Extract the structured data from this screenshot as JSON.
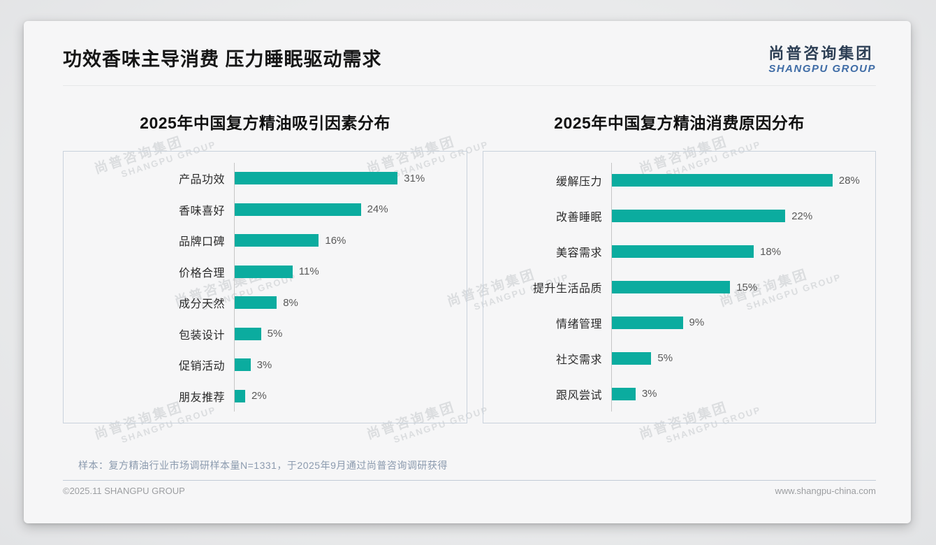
{
  "header": {
    "title": "功效香味主导消费 压力睡眠驱动需求"
  },
  "logo": {
    "cn": "尚普咨询集团",
    "en": "SHANGPU GROUP",
    "cn_color": "#2c3e54",
    "en_color": "#3f6ca6"
  },
  "watermark": {
    "line1": "尚普咨询集团",
    "line2": "SHANGPU GROUP"
  },
  "chart_data": [
    {
      "type": "bar",
      "orientation": "horizontal",
      "title": "2025年中国复方精油吸引因素分布",
      "categories": [
        "产品功效",
        "香味喜好",
        "品牌口碑",
        "价格合理",
        "成分天然",
        "包装设计",
        "促销活动",
        "朋友推荐"
      ],
      "values": [
        31,
        24,
        16,
        11,
        8,
        5,
        3,
        2
      ],
      "value_suffix": "%",
      "xlim": [
        0,
        42
      ],
      "bar_color": "#0bac9f",
      "grid": false,
      "legend": false
    },
    {
      "type": "bar",
      "orientation": "horizontal",
      "title": "2025年中国复方精油消费原因分布",
      "categories": [
        "缓解压力",
        "改善睡眠",
        "美容需求",
        "提升生活品质",
        "情绪管理",
        "社交需求",
        "跟风尝试"
      ],
      "values": [
        28,
        22,
        18,
        15,
        9,
        5,
        3
      ],
      "value_suffix": "%",
      "xlim": [
        0,
        32
      ],
      "bar_color": "#0bac9f",
      "grid": false,
      "legend": false
    }
  ],
  "footnote": {
    "text": "样本：复方精油行业市场调研样本量N=1331，于2025年9月通过尚普咨询调研获得"
  },
  "footer": {
    "left": "©2025.11 SHANGPU GROUP",
    "right": "www.shangpu-china.com"
  },
  "colors": {
    "bar": "#0bac9f",
    "axis": "#c6c6c6",
    "panel_border": "#c9d2dc"
  }
}
